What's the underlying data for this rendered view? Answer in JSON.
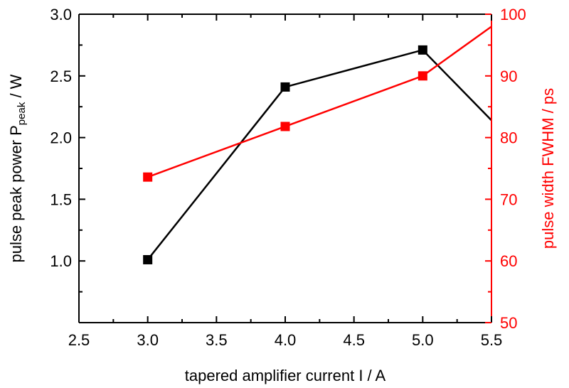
{
  "chart_data": {
    "type": "line",
    "xlabel": "tapered amplifier current I / A",
    "ylabel_left": {
      "prefix": "pulse peak power P",
      "subscript": "peak",
      "suffix": " / W"
    },
    "ylabel_right": "pulse width FWHM / ps",
    "xlim": [
      2.5,
      5.5
    ],
    "ylim_left": [
      0.5,
      3.0
    ],
    "ylim_right": [
      50,
      100
    ],
    "xticks": [
      "2.5",
      "3.0",
      "3.5",
      "4.0",
      "4.5",
      "5.0",
      "5.5"
    ],
    "yticks_left": [
      "1.0",
      "1.5",
      "2.0",
      "2.5",
      "3.0"
    ],
    "yticks_right": [
      "50",
      "60",
      "70",
      "80",
      "90",
      "100"
    ],
    "grid": false,
    "series": [
      {
        "axis": "left",
        "color": "#000000",
        "marker": "square",
        "points": [
          [
            3.0,
            1.01
          ],
          [
            4.0,
            2.41
          ],
          [
            5.0,
            2.71
          ],
          [
            6.0,
            1.57
          ]
        ]
      },
      {
        "axis": "right",
        "color": "#ff0000",
        "marker": "square",
        "points": [
          [
            3.0,
            73.6
          ],
          [
            4.0,
            81.8
          ],
          [
            5.0,
            90.0
          ],
          [
            6.0,
            106.0
          ]
        ]
      }
    ]
  },
  "colors": {
    "left_axis": "#000000",
    "right_axis": "#ff0000"
  }
}
